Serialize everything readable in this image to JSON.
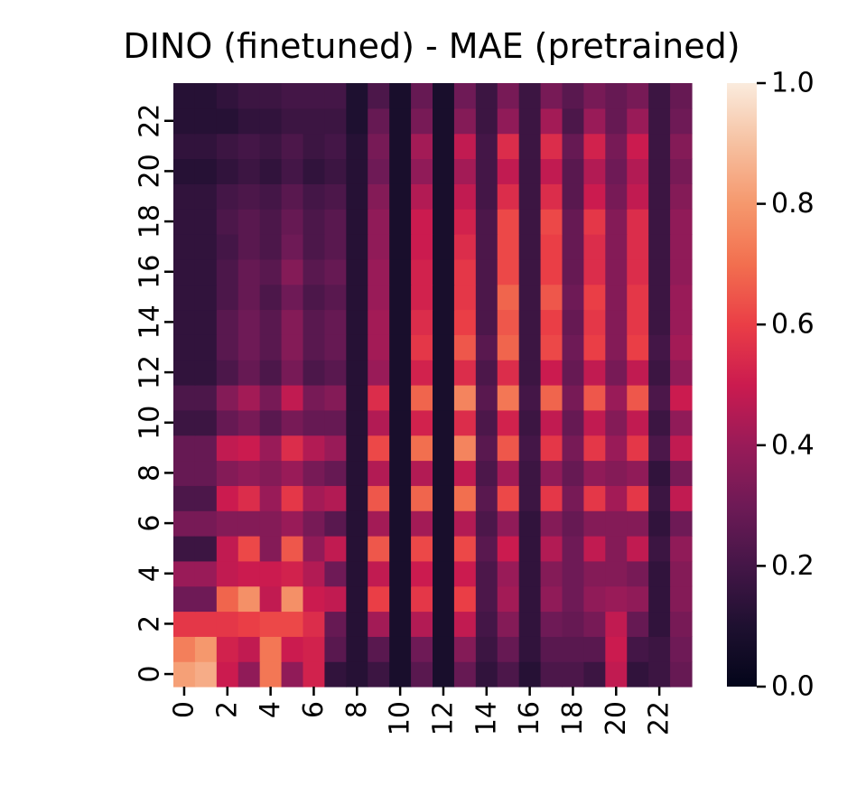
{
  "chart_data": {
    "type": "heatmap",
    "title": "DINO (finetuned) - MAE (pretrained)",
    "xlabel": "",
    "ylabel": "",
    "n_cols": 24,
    "n_rows": 24,
    "x_tick_labels": [
      "0",
      "2",
      "4",
      "6",
      "8",
      "10",
      "12",
      "14",
      "16",
      "18",
      "20",
      "22"
    ],
    "y_tick_labels": [
      "0",
      "2",
      "4",
      "6",
      "8",
      "10",
      "12",
      "14",
      "16",
      "18",
      "20",
      "22"
    ],
    "colorbar": {
      "min": 0.0,
      "max": 1.0,
      "ticks": [
        "0.0",
        "0.2",
        "0.4",
        "0.6",
        "0.8",
        "1.0"
      ]
    },
    "colormap": "rocket",
    "row_order": "row 0 at bottom",
    "values": [
      [
        0.82,
        0.85,
        0.5,
        0.38,
        0.72,
        0.38,
        0.52,
        0.15,
        0.12,
        0.18,
        0.08,
        0.25,
        0.08,
        0.28,
        0.15,
        0.22,
        0.12,
        0.22,
        0.22,
        0.18,
        0.48,
        0.15,
        0.18,
        0.28
      ],
      [
        0.74,
        0.8,
        0.52,
        0.48,
        0.72,
        0.5,
        0.52,
        0.25,
        0.12,
        0.25,
        0.08,
        0.3,
        0.08,
        0.35,
        0.18,
        0.28,
        0.15,
        0.25,
        0.25,
        0.25,
        0.5,
        0.2,
        0.18,
        0.3
      ],
      [
        0.58,
        0.58,
        0.58,
        0.6,
        0.62,
        0.62,
        0.55,
        0.28,
        0.12,
        0.42,
        0.08,
        0.45,
        0.08,
        0.48,
        0.2,
        0.35,
        0.15,
        0.3,
        0.28,
        0.32,
        0.48,
        0.28,
        0.15,
        0.32
      ],
      [
        0.3,
        0.3,
        0.68,
        0.78,
        0.48,
        0.78,
        0.5,
        0.48,
        0.12,
        0.6,
        0.08,
        0.58,
        0.08,
        0.6,
        0.22,
        0.42,
        0.15,
        0.38,
        0.3,
        0.38,
        0.4,
        0.38,
        0.15,
        0.35
      ],
      [
        0.4,
        0.4,
        0.48,
        0.5,
        0.5,
        0.52,
        0.45,
        0.3,
        0.12,
        0.48,
        0.08,
        0.5,
        0.08,
        0.5,
        0.22,
        0.4,
        0.15,
        0.35,
        0.3,
        0.35,
        0.35,
        0.32,
        0.15,
        0.35
      ],
      [
        0.18,
        0.18,
        0.48,
        0.62,
        0.35,
        0.65,
        0.38,
        0.48,
        0.12,
        0.65,
        0.08,
        0.62,
        0.08,
        0.62,
        0.25,
        0.5,
        0.15,
        0.45,
        0.3,
        0.48,
        0.35,
        0.48,
        0.18,
        0.38
      ],
      [
        0.32,
        0.32,
        0.35,
        0.35,
        0.35,
        0.4,
        0.32,
        0.25,
        0.12,
        0.42,
        0.08,
        0.42,
        0.08,
        0.45,
        0.22,
        0.38,
        0.15,
        0.35,
        0.28,
        0.35,
        0.35,
        0.35,
        0.15,
        0.3
      ],
      [
        0.22,
        0.22,
        0.5,
        0.55,
        0.4,
        0.58,
        0.42,
        0.45,
        0.12,
        0.65,
        0.08,
        0.68,
        0.08,
        0.7,
        0.25,
        0.62,
        0.18,
        0.58,
        0.32,
        0.58,
        0.42,
        0.58,
        0.18,
        0.48
      ],
      [
        0.28,
        0.28,
        0.35,
        0.38,
        0.35,
        0.4,
        0.32,
        0.28,
        0.12,
        0.45,
        0.08,
        0.45,
        0.08,
        0.48,
        0.22,
        0.42,
        0.18,
        0.38,
        0.28,
        0.38,
        0.35,
        0.38,
        0.15,
        0.32
      ],
      [
        0.28,
        0.28,
        0.48,
        0.5,
        0.4,
        0.55,
        0.45,
        0.4,
        0.12,
        0.62,
        0.08,
        0.7,
        0.08,
        0.75,
        0.25,
        0.65,
        0.2,
        0.58,
        0.32,
        0.58,
        0.4,
        0.58,
        0.22,
        0.48
      ],
      [
        0.18,
        0.18,
        0.28,
        0.32,
        0.25,
        0.32,
        0.28,
        0.28,
        0.12,
        0.45,
        0.08,
        0.52,
        0.08,
        0.55,
        0.22,
        0.52,
        0.18,
        0.48,
        0.28,
        0.48,
        0.35,
        0.48,
        0.18,
        0.38
      ],
      [
        0.22,
        0.22,
        0.35,
        0.42,
        0.32,
        0.48,
        0.32,
        0.35,
        0.12,
        0.55,
        0.08,
        0.68,
        0.08,
        0.75,
        0.25,
        0.72,
        0.2,
        0.68,
        0.32,
        0.65,
        0.4,
        0.65,
        0.22,
        0.5
      ],
      [
        0.15,
        0.15,
        0.22,
        0.28,
        0.22,
        0.32,
        0.22,
        0.25,
        0.12,
        0.4,
        0.08,
        0.52,
        0.08,
        0.55,
        0.22,
        0.55,
        0.18,
        0.5,
        0.28,
        0.48,
        0.32,
        0.48,
        0.18,
        0.38
      ],
      [
        0.15,
        0.15,
        0.25,
        0.3,
        0.25,
        0.35,
        0.25,
        0.28,
        0.12,
        0.42,
        0.08,
        0.58,
        0.08,
        0.65,
        0.25,
        0.68,
        0.18,
        0.62,
        0.3,
        0.6,
        0.35,
        0.6,
        0.2,
        0.42
      ],
      [
        0.15,
        0.15,
        0.25,
        0.3,
        0.25,
        0.35,
        0.25,
        0.28,
        0.12,
        0.42,
        0.08,
        0.55,
        0.08,
        0.6,
        0.22,
        0.65,
        0.18,
        0.6,
        0.28,
        0.58,
        0.35,
        0.58,
        0.18,
        0.4
      ],
      [
        0.15,
        0.15,
        0.22,
        0.28,
        0.22,
        0.3,
        0.22,
        0.25,
        0.12,
        0.4,
        0.08,
        0.52,
        0.08,
        0.58,
        0.22,
        0.68,
        0.18,
        0.65,
        0.3,
        0.6,
        0.35,
        0.58,
        0.18,
        0.4
      ],
      [
        0.15,
        0.15,
        0.22,
        0.28,
        0.25,
        0.35,
        0.25,
        0.28,
        0.12,
        0.4,
        0.08,
        0.52,
        0.08,
        0.58,
        0.22,
        0.62,
        0.18,
        0.6,
        0.28,
        0.55,
        0.35,
        0.55,
        0.18,
        0.38
      ],
      [
        0.15,
        0.15,
        0.2,
        0.25,
        0.22,
        0.3,
        0.22,
        0.25,
        0.12,
        0.38,
        0.08,
        0.5,
        0.08,
        0.55,
        0.22,
        0.62,
        0.18,
        0.6,
        0.28,
        0.55,
        0.35,
        0.55,
        0.18,
        0.38
      ],
      [
        0.15,
        0.15,
        0.22,
        0.25,
        0.22,
        0.28,
        0.22,
        0.25,
        0.12,
        0.38,
        0.08,
        0.5,
        0.08,
        0.52,
        0.22,
        0.62,
        0.18,
        0.62,
        0.28,
        0.58,
        0.35,
        0.55,
        0.18,
        0.38
      ],
      [
        0.15,
        0.15,
        0.2,
        0.22,
        0.2,
        0.25,
        0.2,
        0.22,
        0.12,
        0.35,
        0.08,
        0.45,
        0.08,
        0.48,
        0.2,
        0.55,
        0.18,
        0.55,
        0.25,
        0.5,
        0.32,
        0.48,
        0.18,
        0.35
      ],
      [
        0.12,
        0.12,
        0.15,
        0.18,
        0.15,
        0.2,
        0.15,
        0.18,
        0.12,
        0.3,
        0.08,
        0.38,
        0.08,
        0.42,
        0.2,
        0.48,
        0.18,
        0.48,
        0.25,
        0.45,
        0.3,
        0.45,
        0.18,
        0.32
      ],
      [
        0.15,
        0.15,
        0.18,
        0.2,
        0.18,
        0.22,
        0.18,
        0.2,
        0.12,
        0.32,
        0.08,
        0.42,
        0.08,
        0.48,
        0.2,
        0.55,
        0.18,
        0.55,
        0.28,
        0.52,
        0.32,
        0.5,
        0.18,
        0.35
      ],
      [
        0.12,
        0.12,
        0.12,
        0.15,
        0.15,
        0.18,
        0.18,
        0.18,
        0.1,
        0.28,
        0.08,
        0.32,
        0.08,
        0.35,
        0.18,
        0.38,
        0.18,
        0.42,
        0.22,
        0.4,
        0.28,
        0.4,
        0.18,
        0.3
      ],
      [
        0.12,
        0.12,
        0.15,
        0.18,
        0.18,
        0.2,
        0.2,
        0.2,
        0.1,
        0.22,
        0.08,
        0.28,
        0.08,
        0.3,
        0.18,
        0.32,
        0.18,
        0.32,
        0.25,
        0.32,
        0.28,
        0.32,
        0.18,
        0.28
      ]
    ]
  }
}
